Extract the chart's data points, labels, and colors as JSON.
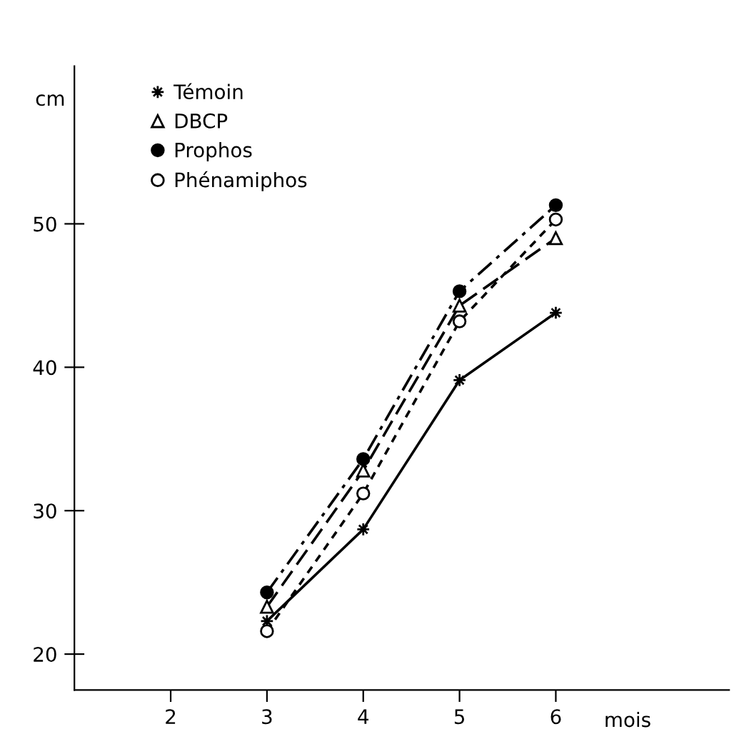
{
  "chart_data": {
    "type": "line",
    "xlabel": "mois",
    "ylabel": "cm",
    "x": [
      3,
      4,
      5,
      6
    ],
    "series": [
      {
        "name": "Témoin",
        "color": "#000000",
        "marker": "star",
        "line_style": "solid",
        "values": [
          22.3,
          28.7,
          39.1,
          43.8
        ]
      },
      {
        "name": "DBCP",
        "color": "#000000",
        "marker": "triangle",
        "line_style": "dashed",
        "values": [
          23.3,
          32.8,
          44.3,
          49.0
        ]
      },
      {
        "name": "Prophos",
        "color": "#000000",
        "marker": "circle",
        "line_style": "dashdot",
        "values": [
          24.3,
          33.6,
          45.3,
          51.3
        ]
      },
      {
        "name": "Phénamiphos",
        "color": "#000000",
        "marker": "circle",
        "line_style": "dotted",
        "values": [
          21.6,
          31.2,
          43.2,
          50.3
        ]
      }
    ],
    "xlim": [
      1,
      7.8
    ],
    "xticks": [
      2,
      3,
      4,
      5,
      6
    ],
    "ylim": [
      17.5,
      61
    ],
    "yticks": [
      20,
      30,
      40,
      50
    ],
    "grid": false,
    "legend": "top left"
  }
}
